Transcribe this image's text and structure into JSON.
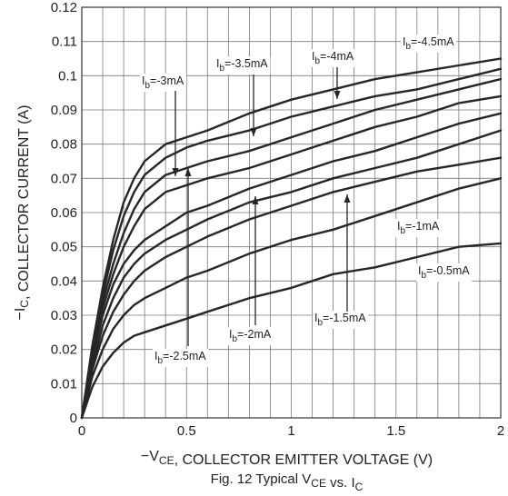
{
  "chart_data": {
    "type": "line",
    "title": "",
    "xlabel": "−V_CE, COLLECTOR EMITTER VOLTAGE (V)",
    "ylabel": "−I_C, COLLECTOR CURRENT (A)",
    "caption": "Fig. 12 Typical V_CE vs. I_C",
    "xlim": [
      0,
      2
    ],
    "ylim": [
      0,
      0.12
    ],
    "x_ticks": [
      "0",
      "0.5",
      "1",
      "1.5",
      "2"
    ],
    "y_ticks": [
      "0",
      "0.01",
      "0.02",
      "0.03",
      "0.04",
      "0.05",
      "0.06",
      "0.07",
      "0.08",
      "0.09",
      "0.1",
      "0.11",
      "0.12"
    ],
    "grid": true,
    "x": [
      0,
      0.05,
      0.1,
      0.15,
      0.2,
      0.25,
      0.3,
      0.4,
      0.5,
      0.6,
      0.8,
      1.0,
      1.2,
      1.4,
      1.6,
      1.8,
      2.0
    ],
    "series": [
      {
        "name": "Ib=-0.5mA",
        "values": [
          0,
          0.009,
          0.015,
          0.019,
          0.022,
          0.024,
          0.025,
          0.027,
          0.029,
          0.031,
          0.035,
          0.038,
          0.042,
          0.044,
          0.047,
          0.05,
          0.051
        ]
      },
      {
        "name": "Ib=-1mA",
        "values": [
          0,
          0.012,
          0.02,
          0.026,
          0.03,
          0.033,
          0.035,
          0.038,
          0.041,
          0.043,
          0.048,
          0.052,
          0.055,
          0.059,
          0.063,
          0.067,
          0.07
        ]
      },
      {
        "name": "Ib=-1.5mA",
        "values": [
          0,
          0.014,
          0.024,
          0.031,
          0.036,
          0.04,
          0.043,
          0.047,
          0.05,
          0.053,
          0.058,
          0.062,
          0.066,
          0.069,
          0.072,
          0.074,
          0.076
        ]
      },
      {
        "name": "Ib=-2mA",
        "values": [
          0,
          0.015,
          0.027,
          0.035,
          0.041,
          0.045,
          0.048,
          0.052,
          0.055,
          0.058,
          0.063,
          0.066,
          0.07,
          0.073,
          0.076,
          0.08,
          0.084
        ]
      },
      {
        "name": "Ib=-2.5mA",
        "values": [
          0,
          0.017,
          0.03,
          0.039,
          0.045,
          0.049,
          0.052,
          0.056,
          0.06,
          0.062,
          0.067,
          0.071,
          0.075,
          0.078,
          0.082,
          0.086,
          0.089
        ]
      },
      {
        "name": "Ib=-3mA",
        "values": [
          0,
          0.018,
          0.032,
          0.042,
          0.05,
          0.056,
          0.061,
          0.066,
          0.068,
          0.07,
          0.073,
          0.077,
          0.081,
          0.085,
          0.088,
          0.092,
          0.094
        ]
      },
      {
        "name": "Ib=-3.5mA",
        "values": [
          0,
          0.019,
          0.034,
          0.045,
          0.054,
          0.061,
          0.066,
          0.071,
          0.073,
          0.075,
          0.078,
          0.082,
          0.086,
          0.09,
          0.093,
          0.096,
          0.099
        ]
      },
      {
        "name": "Ib=-4mA",
        "values": [
          0,
          0.02,
          0.036,
          0.049,
          0.059,
          0.066,
          0.071,
          0.076,
          0.079,
          0.081,
          0.084,
          0.088,
          0.091,
          0.094,
          0.096,
          0.099,
          0.102
        ]
      },
      {
        "name": "Ib=-4.5mA",
        "values": [
          0,
          0.021,
          0.038,
          0.052,
          0.063,
          0.07,
          0.075,
          0.08,
          0.082,
          0.084,
          0.089,
          0.093,
          0.096,
          0.099,
          0.101,
          0.103,
          0.105
        ]
      }
    ],
    "annotations": [
      {
        "label": "Ib=-3mA"
      },
      {
        "label": "Ib=-3.5mA"
      },
      {
        "label": "Ib=-4mA"
      },
      {
        "label": "Ib=-4.5mA"
      },
      {
        "label": "Ib=-1mA"
      },
      {
        "label": "Ib=-0.5mA"
      },
      {
        "label": "Ib=-1.5mA"
      },
      {
        "label": "Ib=-2mA"
      },
      {
        "label": "Ib=-2.5mA"
      }
    ]
  }
}
